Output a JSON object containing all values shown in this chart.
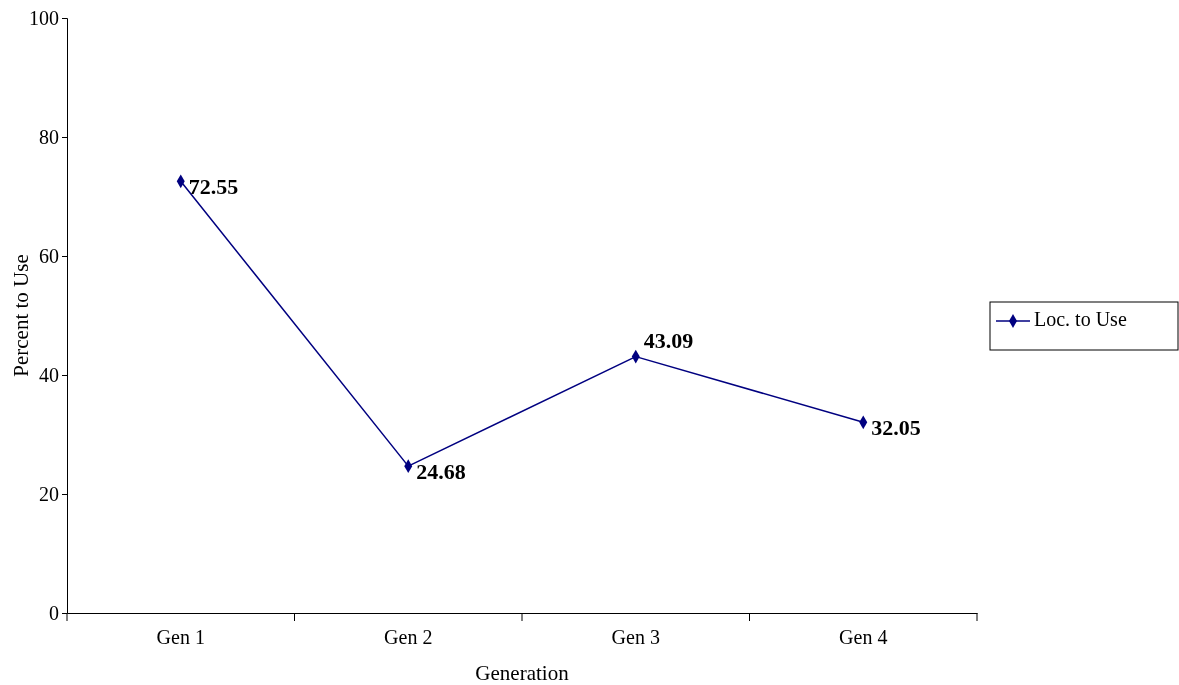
{
  "chart_data": {
    "type": "line",
    "xlabel": "Generation",
    "ylabel": "Percent to Use",
    "categories": [
      "Gen 1",
      "Gen 2",
      "Gen 3",
      "Gen 4"
    ],
    "series": [
      {
        "name": "Loc. to Use",
        "color": "#000080",
        "values": [
          72.55,
          24.68,
          43.09,
          32.05
        ]
      }
    ],
    "ylim": [
      0,
      100
    ],
    "yticks": [
      0,
      20,
      40,
      60,
      80,
      100
    ],
    "grid": false,
    "legend": "right",
    "marker": "diamond",
    "line_style": "solid",
    "data_labels": true
  }
}
